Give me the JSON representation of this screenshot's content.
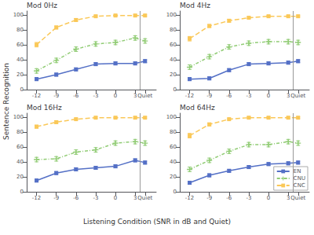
{
  "xlabel": "Listening Condition (SNR in dB and Quiet)",
  "ylabel": "Sentence Recognition",
  "chart_data": [
    {
      "type": "line",
      "title": "Mod 0Hz",
      "x": [
        -12,
        -9,
        -6,
        -3,
        0,
        3,
        4.5
      ],
      "series": [
        {
          "name": "EN",
          "values": [
            14,
            20,
            27,
            34,
            35,
            35,
            38
          ],
          "err": [
            2,
            2,
            2,
            2,
            2,
            2,
            2
          ],
          "marker": "square",
          "line_style": "solid"
        },
        {
          "name": "CNU",
          "values": [
            25,
            39,
            54,
            61,
            63,
            69,
            65
          ],
          "err": [
            3,
            3,
            3,
            3,
            3,
            3,
            3
          ],
          "marker": "plus",
          "line_style": "dashdot"
        },
        {
          "name": "CNC",
          "values": [
            60,
            83,
            93,
            98,
            99,
            99,
            99
          ],
          "err": [
            3,
            2,
            2,
            1,
            1,
            1,
            1
          ],
          "marker": "square",
          "line_style": "dashed"
        }
      ],
      "xlim": [
        -13.5,
        6.2
      ],
      "xticks": [
        -12,
        -9,
        -6,
        -3,
        0,
        3,
        {
          "value": 4.5,
          "label": "Quiet"
        }
      ],
      "ylim": [
        0,
        105
      ],
      "yticks": [
        0,
        20,
        40,
        60,
        80,
        100
      ],
      "grid": false
    },
    {
      "type": "line",
      "title": "Mod 4Hz",
      "x": [
        -12,
        -9,
        -6,
        -3,
        0,
        3,
        4.5
      ],
      "series": [
        {
          "name": "EN",
          "values": [
            14,
            15,
            26,
            34,
            35,
            36,
            38
          ],
          "err": [
            2,
            2,
            2,
            2,
            2,
            2,
            2
          ],
          "marker": "square",
          "line_style": "solid"
        },
        {
          "name": "CNU",
          "values": [
            30,
            44,
            57,
            62,
            64,
            64,
            63
          ],
          "err": [
            3,
            3,
            3,
            3,
            3,
            3,
            3
          ],
          "marker": "plus",
          "line_style": "dashdot"
        },
        {
          "name": "CNC",
          "values": [
            68,
            85,
            92,
            96,
            98,
            98,
            98
          ],
          "err": [
            3,
            2,
            2,
            1,
            1,
            1,
            1
          ],
          "marker": "square",
          "line_style": "dashed"
        }
      ],
      "xlim": [
        -13.5,
        6.2
      ],
      "xticks": [
        -12,
        -9,
        -6,
        -3,
        0,
        3,
        {
          "value": 4.5,
          "label": "Quiet"
        }
      ],
      "ylim": [
        0,
        105
      ],
      "yticks": [
        0,
        20,
        40,
        60,
        80,
        100
      ],
      "grid": false
    },
    {
      "type": "line",
      "title": "Mod 16Hz",
      "x": [
        -12,
        -9,
        -6,
        -3,
        0,
        3,
        4.5
      ],
      "series": [
        {
          "name": "EN",
          "values": [
            15,
            25,
            30,
            32,
            34,
            42,
            39
          ],
          "err": [
            2,
            2,
            2,
            2,
            2,
            2,
            2
          ],
          "marker": "square",
          "line_style": "solid"
        },
        {
          "name": "CNU",
          "values": [
            43,
            44,
            53,
            56,
            65,
            67,
            65
          ],
          "err": [
            3,
            3,
            3,
            3,
            3,
            3,
            3
          ],
          "marker": "plus",
          "line_style": "dashdot"
        },
        {
          "name": "CNC",
          "values": [
            87,
            93,
            97,
            99,
            99,
            99,
            99
          ],
          "err": [
            2,
            2,
            1,
            1,
            1,
            1,
            1
          ],
          "marker": "square",
          "line_style": "dashed"
        }
      ],
      "xlim": [
        -13.5,
        6.2
      ],
      "xticks": [
        -12,
        -9,
        -6,
        -3,
        0,
        3,
        {
          "value": 4.5,
          "label": "Quiet"
        }
      ],
      "ylim": [
        0,
        105
      ],
      "yticks": [
        0,
        20,
        40,
        60,
        80,
        100
      ],
      "grid": false
    },
    {
      "type": "line",
      "title": "Mod 64Hz",
      "x": [
        -12,
        -9,
        -6,
        -3,
        0,
        3,
        4.5
      ],
      "series": [
        {
          "name": "EN",
          "values": [
            12,
            22,
            28,
            33,
            37,
            38,
            39
          ],
          "err": [
            2,
            2,
            2,
            2,
            2,
            2,
            2
          ],
          "marker": "square",
          "line_style": "solid"
        },
        {
          "name": "CNU",
          "values": [
            30,
            42,
            54,
            63,
            63,
            67,
            65
          ],
          "err": [
            3,
            3,
            3,
            3,
            3,
            3,
            3
          ],
          "marker": "plus",
          "line_style": "dashdot"
        },
        {
          "name": "CNC",
          "values": [
            75,
            90,
            97,
            99,
            99,
            99,
            99
          ],
          "err": [
            3,
            2,
            1,
            1,
            1,
            1,
            1
          ],
          "marker": "square",
          "line_style": "dashed"
        }
      ],
      "xlim": [
        -13.5,
        6.2
      ],
      "xticks": [
        -12,
        -9,
        -6,
        -3,
        0,
        3,
        {
          "value": 4.5,
          "label": "Quiet"
        }
      ],
      "ylim": [
        0,
        105
      ],
      "yticks": [
        0,
        20,
        40,
        60,
        80,
        100
      ],
      "grid": false,
      "legend": "lower right"
    }
  ]
}
